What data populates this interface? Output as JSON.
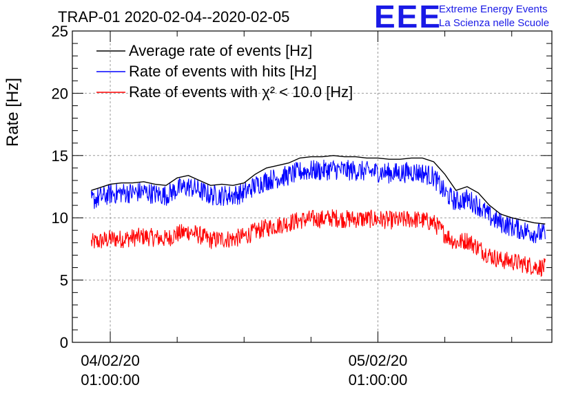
{
  "logo": {
    "letters": "EEE",
    "line1": "Extreme Energy Events",
    "line2": "La Scienza nelle Scuole"
  },
  "chart_data": {
    "type": "line",
    "title": "TRAP-01 2020-02-04--2020-02-05",
    "xlabel": "",
    "ylabel": "Rate [Hz]",
    "ylim": [
      0,
      25
    ],
    "yticks": [
      0,
      5,
      10,
      15,
      20,
      25
    ],
    "xlim_hours": [
      -3.4,
      39.6
    ],
    "xticks": [
      {
        "hour": 0,
        "date": "04/02/20",
        "time": "01:00:00"
      },
      {
        "hour": 24,
        "date": "05/02/20",
        "time": "01:00:00"
      }
    ],
    "grid": true,
    "legend_position": "top-left",
    "series": [
      {
        "name": "Average rate of events [Hz]",
        "color": "#000000",
        "x": [
          -1.7,
          -1,
          0,
          1,
          2,
          3,
          4,
          5,
          6,
          7,
          8,
          9,
          10,
          11,
          12,
          13,
          14,
          15,
          16,
          17,
          18,
          19,
          20,
          21,
          22,
          23,
          24,
          25,
          26,
          27,
          28,
          29,
          30,
          31,
          32,
          33,
          34,
          35,
          36,
          37,
          38,
          39
        ],
        "y": [
          12.2,
          12.4,
          12.7,
          12.8,
          12.8,
          12.9,
          12.7,
          12.6,
          13.2,
          13.4,
          13.0,
          12.6,
          12.7,
          12.6,
          12.8,
          13.5,
          14.0,
          14.2,
          14.4,
          14.8,
          14.9,
          14.9,
          15.0,
          14.9,
          14.9,
          14.8,
          14.8,
          14.7,
          14.7,
          14.8,
          14.8,
          14.5,
          13.5,
          12.2,
          12.5,
          12.0,
          11.0,
          10.3,
          10.0,
          9.8,
          9.6,
          9.5
        ]
      },
      {
        "name": "Rate of events with hits [Hz]",
        "color": "#0000ff",
        "x": [
          -1.7,
          -1,
          0,
          1,
          2,
          3,
          4,
          5,
          6,
          7,
          8,
          9,
          10,
          11,
          12,
          13,
          14,
          15,
          16,
          17,
          18,
          19,
          20,
          21,
          22,
          23,
          24,
          25,
          26,
          27,
          28,
          29,
          30,
          31,
          32,
          33,
          34,
          35,
          36,
          37,
          38,
          39
        ],
        "y": [
          11.4,
          11.6,
          11.9,
          12.0,
          12.0,
          12.1,
          11.9,
          11.8,
          12.3,
          12.5,
          12.2,
          11.8,
          11.8,
          11.8,
          12.0,
          12.6,
          13.0,
          13.2,
          13.4,
          13.7,
          13.8,
          13.8,
          13.9,
          13.8,
          13.8,
          13.7,
          13.7,
          13.6,
          13.6,
          13.7,
          13.6,
          13.3,
          12.0,
          11.3,
          11.5,
          11.0,
          10.1,
          9.6,
          9.3,
          9.0,
          8.8,
          8.7
        ]
      },
      {
        "name": "Rate of events with χ² < 10.0 [Hz]",
        "color": "#ff0000",
        "x": [
          -1.7,
          -1,
          0,
          1,
          2,
          3,
          4,
          5,
          6,
          7,
          8,
          9,
          10,
          11,
          12,
          13,
          14,
          15,
          16,
          17,
          18,
          19,
          20,
          21,
          22,
          23,
          24,
          25,
          26,
          27,
          28,
          29,
          30,
          31,
          32,
          33,
          34,
          35,
          36,
          37,
          38,
          39
        ],
        "y": [
          8.0,
          8.1,
          8.3,
          8.3,
          8.4,
          8.5,
          8.4,
          8.3,
          8.7,
          8.9,
          8.6,
          8.2,
          8.3,
          8.3,
          8.5,
          8.9,
          9.2,
          9.4,
          9.6,
          9.8,
          9.9,
          9.9,
          10.0,
          9.9,
          9.9,
          9.9,
          9.9,
          9.8,
          9.8,
          9.9,
          9.8,
          9.6,
          8.7,
          8.0,
          8.2,
          7.6,
          7.0,
          6.6,
          6.5,
          6.3,
          6.1,
          6.0
        ]
      }
    ]
  }
}
